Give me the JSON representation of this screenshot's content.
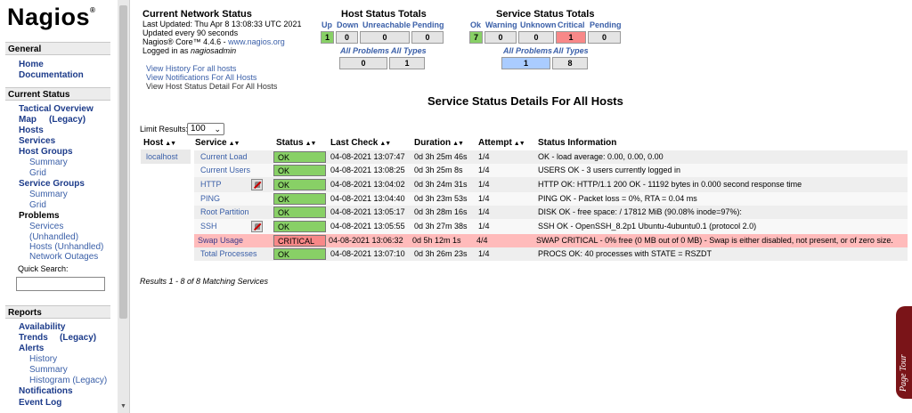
{
  "sidebar": {
    "logo": "Nagios",
    "logo_mark": "®",
    "sections": {
      "general": "General",
      "current_status": "Current Status",
      "reports": "Reports"
    },
    "general_items": [
      "Home",
      "Documentation"
    ],
    "status_items": {
      "tactical_overview": "Tactical Overview",
      "map": "Map",
      "map_legacy": "(Legacy)",
      "hosts": "Hosts",
      "services": "Services",
      "host_groups": "Host Groups",
      "host_groups_summary": "Summary",
      "host_groups_grid": "Grid",
      "service_groups": "Service Groups",
      "service_groups_summary": "Summary",
      "service_groups_grid": "Grid",
      "problems": "Problems",
      "problems_services": "Services",
      "problems_unhandled": "(Unhandled)",
      "problems_hosts": "Hosts (Unhandled)",
      "network_outages": "Network Outages"
    },
    "quick_search_label": "Quick Search:",
    "reports_items": {
      "availability": "Availability",
      "trends": "Trends",
      "trends_legacy": "(Legacy)",
      "alerts": "Alerts",
      "history": "History",
      "summary": "Summary",
      "histogram": "Histogram (Legacy)",
      "notifications": "Notifications",
      "event_log": "Event Log"
    }
  },
  "header": {
    "title": "Current Network Status",
    "last_updated": "Last Updated: Thu Apr 8 13:08:33 UTC 2021",
    "update_interval": "Updated every 90 seconds",
    "version_prefix": "Nagios® Core™ 4.4.6 - ",
    "version_link": "www.nagios.org",
    "logged_in_prefix": "Logged in as ",
    "logged_in_user": "nagiosadmin",
    "links": [
      "View History For all hosts",
      "View Notifications For All Hosts",
      "View Host Status Detail For All Hosts"
    ]
  },
  "host_totals": {
    "title": "Host Status Totals",
    "labels": [
      "Up",
      "Down",
      "Unreachable",
      "Pending"
    ],
    "values": [
      "1",
      "0",
      "0",
      "0"
    ],
    "problems_label": "All Problems",
    "types_label": "All Types",
    "problems_value": "0",
    "types_value": "1"
  },
  "service_totals": {
    "title": "Service Status Totals",
    "labels": [
      "Ok",
      "Warning",
      "Unknown",
      "Critical",
      "Pending"
    ],
    "values": [
      "7",
      "0",
      "0",
      "1",
      "0"
    ],
    "problems_label": "All Problems",
    "types_label": "All Types",
    "problems_value": "1",
    "types_value": "8"
  },
  "main": {
    "title": "Service Status Details For All Hosts",
    "limit_label": "Limit Results:",
    "limit_value": "100",
    "results_text": "Results 1 - 8 of 8 Matching Services"
  },
  "table": {
    "headers": [
      "Host",
      "Service",
      "Status",
      "Last Check",
      "Duration",
      "Attempt",
      "Status Information"
    ],
    "host": "localhost",
    "rows": [
      {
        "service": "Current Load",
        "status": "OK",
        "last_check": "04-08-2021 13:07:47",
        "duration": "0d 3h 25m 46s",
        "attempt": "1/4",
        "info": "OK - load average: 0.00, 0.00, 0.00"
      },
      {
        "service": "Current Users",
        "status": "OK",
        "last_check": "04-08-2021 13:08:25",
        "duration": "0d 3h 25m 8s",
        "attempt": "1/4",
        "info": "USERS OK - 3 users currently logged in"
      },
      {
        "service": "HTTP",
        "status": "OK",
        "last_check": "04-08-2021 13:04:02",
        "duration": "0d 3h 24m 31s",
        "attempt": "1/4",
        "info": "HTTP OK: HTTP/1.1 200 OK - 11192 bytes in 0.000 second response time"
      },
      {
        "service": "PING",
        "status": "OK",
        "last_check": "04-08-2021 13:04:40",
        "duration": "0d 3h 23m 53s",
        "attempt": "1/4",
        "info": "PING OK - Packet loss = 0%, RTA = 0.04 ms"
      },
      {
        "service": "Root Partition",
        "status": "OK",
        "last_check": "04-08-2021 13:05:17",
        "duration": "0d 3h 28m 16s",
        "attempt": "1/4",
        "info": "DISK OK - free space: / 17812 MiB (90.08% inode=97%):"
      },
      {
        "service": "SSH",
        "status": "OK",
        "last_check": "04-08-2021 13:05:55",
        "duration": "0d 3h 27m 38s",
        "attempt": "1/4",
        "info": "SSH OK - OpenSSH_8.2p1 Ubuntu-4ubuntu0.1 (protocol 2.0)"
      },
      {
        "service": "Swap Usage",
        "status": "CRITICAL",
        "last_check": "04-08-2021 13:06:32",
        "duration": "0d 5h 12m 1s",
        "attempt": "4/4",
        "info": "SWAP CRITICAL - 0% free (0 MB out of 0 MB) - Swap is either disabled, not present, or of zero size."
      },
      {
        "service": "Total Processes",
        "status": "OK",
        "last_check": "04-08-2021 13:07:10",
        "duration": "0d 3h 26m 23s",
        "attempt": "1/4",
        "info": "PROCS OK: 40 processes with STATE = RSZDT"
      }
    ]
  },
  "page_tour": "Page Tour",
  "colors": {
    "ok": "#88d066",
    "critical": "#f88888",
    "link": "#3a5fa8",
    "tour_tab": "#7a1418"
  }
}
